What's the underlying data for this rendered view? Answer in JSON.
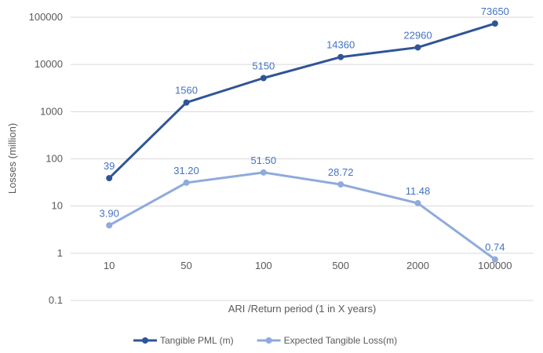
{
  "chart_data": {
    "type": "line",
    "title": "",
    "xlabel": "ARI /Return period (1 in X years)",
    "ylabel": "Losses (million)",
    "yscale": "log",
    "ylim": [
      0.1,
      100000
    ],
    "yticks": [
      "0.1",
      "1",
      "10",
      "100",
      "1000",
      "10000",
      "100000"
    ],
    "categories": [
      "10",
      "50",
      "100",
      "500",
      "2000",
      "100000"
    ],
    "grid": true,
    "legend_position": "bottom",
    "series": [
      {
        "name": "Tangible PML (m)",
        "color": "#2F5597",
        "values": [
          39,
          1560,
          5150,
          14360,
          22960,
          73650
        ],
        "labels": [
          "39",
          "1560",
          "5150",
          "14360",
          "22960",
          "73650"
        ]
      },
      {
        "name": "Expected Tangible Loss(m)",
        "color": "#8FAADC",
        "values": [
          3.9,
          31.2,
          51.5,
          28.72,
          11.48,
          0.74
        ],
        "labels": [
          "3.90",
          "31.20",
          "51.50",
          "28.72",
          "11.48",
          "0.74"
        ]
      }
    ]
  }
}
